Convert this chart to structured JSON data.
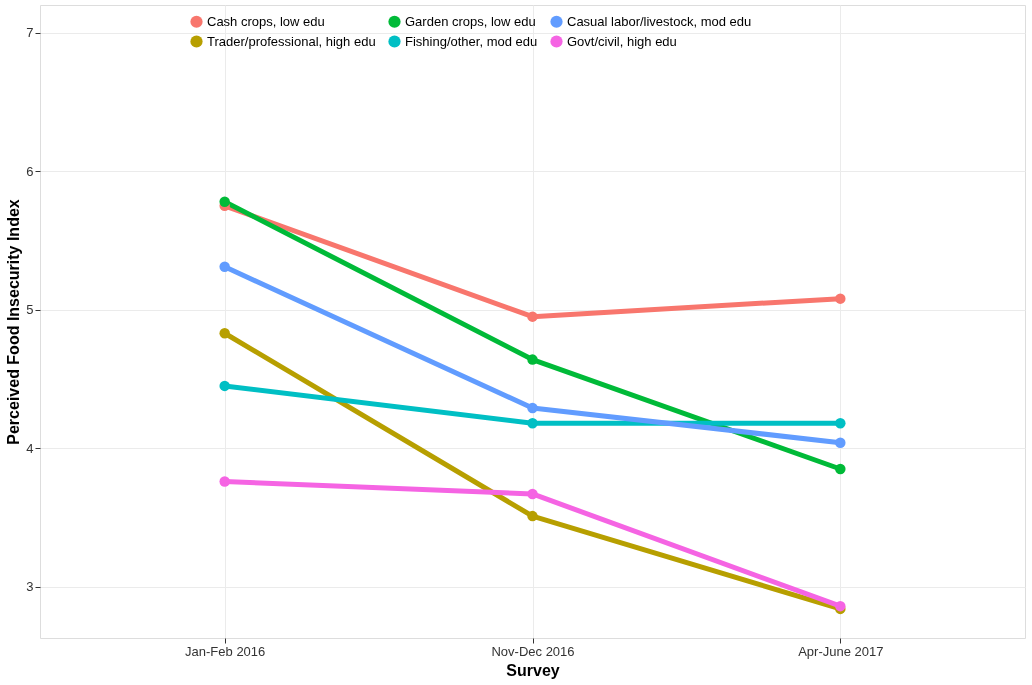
{
  "chart_data": {
    "type": "line",
    "xlabel": "Survey",
    "ylabel": "Perceived Food Insecurity Index",
    "categories": [
      "Jan-Feb 2016",
      "Nov-Dec 2016",
      "Apr-June 2017"
    ],
    "series": [
      {
        "name": "Cash crops, low edu",
        "color": "#f8766d",
        "values": [
          5.75,
          4.95,
          5.08
        ]
      },
      {
        "name": "Trader/professional, high edu",
        "color": "#b79f00",
        "values": [
          4.83,
          3.51,
          2.84
        ]
      },
      {
        "name": "Garden crops, low edu",
        "color": "#00ba38",
        "values": [
          5.78,
          4.64,
          3.85
        ]
      },
      {
        "name": "Fishing/other, mod edu",
        "color": "#00bfc4",
        "values": [
          4.45,
          4.18,
          4.18
        ]
      },
      {
        "name": "Casual labor/livestock, mod edu",
        "color": "#619cff",
        "values": [
          5.31,
          4.29,
          4.04
        ]
      },
      {
        "name": "Govt/civil, high edu",
        "color": "#f564e3",
        "values": [
          3.76,
          3.67,
          2.86
        ]
      }
    ],
    "ylim": [
      2.63,
      7.2
    ],
    "yticks": [
      3,
      4,
      5,
      6,
      7
    ],
    "grid": true,
    "legend": "top",
    "marker": "circle",
    "line_style": "solid"
  }
}
